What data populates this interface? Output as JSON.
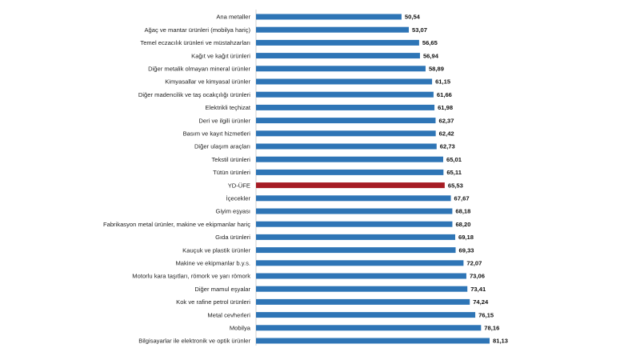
{
  "chart_data": {
    "type": "bar",
    "orientation": "horizontal",
    "title": "",
    "xlabel": "",
    "ylabel": "",
    "xlim": [
      0,
      81.13
    ],
    "grid": false,
    "legend": "none",
    "colors": {
      "default": "#2E75B6",
      "highlight": "#A61C24"
    },
    "highlight_category": "YD-ÜFE",
    "categories": [
      "Ana metaller",
      "Ağaç ve mantar ürünleri (mobilya hariç)",
      "Temel eczacılık ürünleri ve müstahzarları",
      "Kağıt ve kağıt ürünleri",
      "Diğer metalik olmayan mineral ürünler",
      "Kimyasallar ve kimyasal ürünler",
      "Diğer madencilik ve taş ocakçılığı ürünleri",
      "Elektrikli teçhizat",
      "Deri ve ilgili ürünler",
      "Basım ve kayıt hizmetleri",
      "Diğer ulaşım araçları",
      "Tekstil ürünleri",
      "Tütün ürünleri",
      "YD-ÜFE",
      "İçecekler",
      "Giyim eşyası",
      "Fabrikasyon metal ürünler, makine ve ekipmanlar hariç",
      "Gıda ürünleri",
      "Kauçuk ve plastik ürünler",
      "Makine ve ekipmanlar b.y.s.",
      "Motorlu kara taşıtları, römork ve yarı römork",
      "Diğer mamul eşyalar",
      "Kok ve rafine petrol ürünleri",
      "Metal cevherleri",
      "Mobilya",
      "Bilgisayarlar ile elektronik ve optik ürünler"
    ],
    "values": [
      50.54,
      53.07,
      56.65,
      56.94,
      58.89,
      61.15,
      61.66,
      61.98,
      62.37,
      62.42,
      62.73,
      65.01,
      65.11,
      65.53,
      67.67,
      68.18,
      68.2,
      69.18,
      69.33,
      72.07,
      73.06,
      73.41,
      74.24,
      76.15,
      78.16,
      81.13
    ],
    "value_labels": [
      "50,54",
      "53,07",
      "56,65",
      "56,94",
      "58,89",
      "61,15",
      "61,66",
      "61,98",
      "62,37",
      "62,42",
      "62,73",
      "65,01",
      "65,11",
      "65,53",
      "67,67",
      "68,18",
      "68,20",
      "69,18",
      "69,33",
      "72,07",
      "73,06",
      "73,41",
      "74,24",
      "76,15",
      "78,16",
      "81,13"
    ]
  }
}
